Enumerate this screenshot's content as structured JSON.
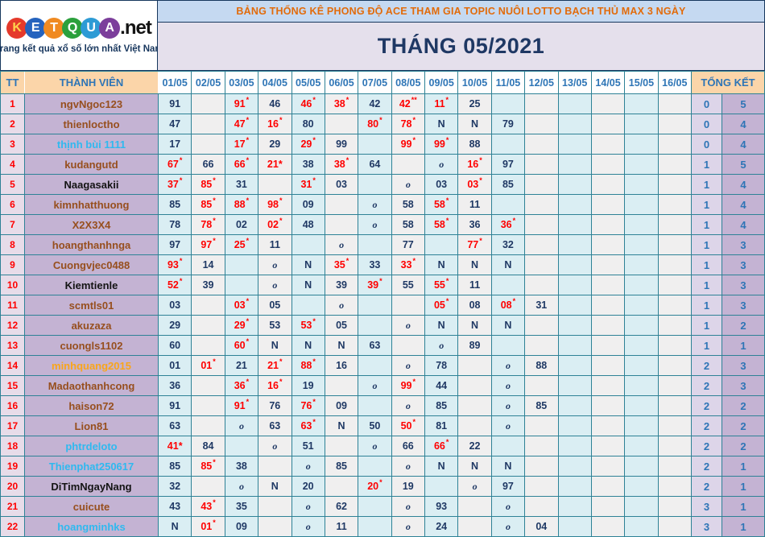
{
  "logo": {
    "letters": [
      {
        "ch": "K",
        "bg": "#E53A2B",
        "fg": "#FFD34D"
      },
      {
        "ch": "E",
        "bg": "#2563BE",
        "fg": "#FFFFFF"
      },
      {
        "ch": "T",
        "bg": "#F08A21",
        "fg": "#FFFFFF"
      },
      {
        "ch": "Q",
        "bg": "#2BA03C",
        "fg": "#FFFFFF"
      },
      {
        "ch": "U",
        "bg": "#2D9BD5",
        "fg": "#FFFFFF"
      },
      {
        "ch": "A",
        "bg": "#7C3E9B",
        "fg": "#FFFFFF"
      }
    ],
    "suffix": ".net",
    "tagline": "Trang kết quả xổ số lớn nhất Việt Nam"
  },
  "banner": {
    "title": "BẢNG THỐNG KÊ PHONG ĐỘ ACE THAM GIA TOPIC NUÔI LOTTO BẠCH THỦ MAX 3 NGÀY",
    "month": "THÁNG 05/2021"
  },
  "colors": {
    "grid_border": "#2E8296",
    "header_text_blue": "#2E75B6",
    "header_peach_bg": "#FBD5A9",
    "banner_bg": "#C5D9F1",
    "banner_text": "#E26B0A",
    "month_bg": "#E5E0EC",
    "value_navy": "#1F3864",
    "value_red": "#FF0000",
    "tt_col_bg": "#E7DCE9",
    "name_col_bg": "#C4B3D3",
    "odd_day_col_bg": "#DAEEF3",
    "even_day_col_bg": "#F0EFEF",
    "summary_col1_bg": "#DDD5E9",
    "summary_col2_bg": "#C4B3D3"
  },
  "table": {
    "tt_header": "TT",
    "member_header": "THÀNH VIÊN",
    "summary_header": "TỔNG KẾT",
    "date_headers": [
      "01/05",
      "02/05",
      "03/05",
      "04/05",
      "05/05",
      "06/05",
      "07/05",
      "08/05",
      "09/05",
      "10/05",
      "11/05",
      "12/05",
      "13/05",
      "14/05",
      "15/05",
      "16/05"
    ],
    "rows": [
      {
        "tt": "1",
        "name": "ngvNgoc123",
        "color": "brown",
        "cells": [
          [
            "91",
            "n"
          ],
          null,
          [
            "91",
            "r"
          ],
          [
            "46",
            "n"
          ],
          [
            "46",
            "r"
          ],
          [
            "38",
            "r"
          ],
          [
            "42",
            "n"
          ],
          [
            "42",
            "rr"
          ],
          [
            "11",
            "r"
          ],
          [
            "25",
            "n"
          ],
          null,
          null,
          null,
          null,
          null,
          null
        ],
        "sum": [
          "0",
          "5"
        ]
      },
      {
        "tt": "2",
        "name": "thienloctho",
        "color": "brown",
        "cells": [
          [
            "47",
            "n"
          ],
          null,
          [
            "47",
            "r"
          ],
          [
            "16",
            "r"
          ],
          [
            "80",
            "n"
          ],
          null,
          [
            "80",
            "r"
          ],
          [
            "78",
            "r"
          ],
          [
            "N",
            "N"
          ],
          [
            "N",
            "N"
          ],
          [
            "79",
            "n"
          ],
          null,
          null,
          null,
          null,
          null
        ],
        "sum": [
          "0",
          "4"
        ]
      },
      {
        "tt": "3",
        "name": "thịnh bùi 1111",
        "color": "cyan",
        "cells": [
          [
            "17",
            "n"
          ],
          null,
          [
            "17",
            "r"
          ],
          [
            "29",
            "n"
          ],
          [
            "29",
            "r"
          ],
          [
            "99",
            "n"
          ],
          null,
          [
            "99",
            "r"
          ],
          [
            "99",
            "r"
          ],
          [
            "88",
            "n"
          ],
          null,
          null,
          null,
          null,
          null,
          null
        ],
        "sum": [
          "0",
          "4"
        ]
      },
      {
        "tt": "4",
        "name": "kudangutd",
        "color": "brown",
        "cells": [
          [
            "67",
            "r"
          ],
          [
            "66",
            "n"
          ],
          [
            "66",
            "r"
          ],
          [
            "21*",
            "ri"
          ],
          [
            "38",
            "n"
          ],
          [
            "38",
            "r"
          ],
          [
            "64",
            "n"
          ],
          null,
          [
            "o",
            "o"
          ],
          [
            "16",
            "r"
          ],
          [
            "97",
            "n"
          ],
          null,
          null,
          null,
          null,
          null
        ],
        "sum": [
          "1",
          "5"
        ]
      },
      {
        "tt": "5",
        "name": "Naagasakii",
        "color": "black",
        "cells": [
          [
            "37",
            "r"
          ],
          [
            "85",
            "r"
          ],
          [
            "31",
            "n"
          ],
          null,
          [
            "31",
            "r"
          ],
          [
            "03",
            "n"
          ],
          null,
          [
            "o",
            "o"
          ],
          [
            "03",
            "n"
          ],
          [
            "03",
            "r"
          ],
          [
            "85",
            "n"
          ],
          null,
          null,
          null,
          null,
          null
        ],
        "sum": [
          "1",
          "4"
        ]
      },
      {
        "tt": "6",
        "name": "kimnhatthuong",
        "color": "brown",
        "cells": [
          [
            "85",
            "n"
          ],
          [
            "85",
            "r"
          ],
          [
            "88",
            "r"
          ],
          [
            "98",
            "r"
          ],
          [
            "09",
            "n"
          ],
          null,
          [
            "o",
            "o"
          ],
          [
            "58",
            "n"
          ],
          [
            "58",
            "r"
          ],
          [
            "11",
            "n"
          ],
          null,
          null,
          null,
          null,
          null,
          null
        ],
        "sum": [
          "1",
          "4"
        ]
      },
      {
        "tt": "7",
        "name": "X2X3X4",
        "color": "brown",
        "cells": [
          [
            "78",
            "n"
          ],
          [
            "78",
            "r"
          ],
          [
            "02",
            "n"
          ],
          [
            "02",
            "r"
          ],
          [
            "48",
            "n"
          ],
          null,
          [
            "o",
            "o"
          ],
          [
            "58",
            "n"
          ],
          [
            "58",
            "r"
          ],
          [
            "36",
            "n"
          ],
          [
            "36",
            "r"
          ],
          null,
          null,
          null,
          null,
          null
        ],
        "sum": [
          "1",
          "4"
        ]
      },
      {
        "tt": "8",
        "name": "hoangthanhnga",
        "color": "brown",
        "cells": [
          [
            "97",
            "n"
          ],
          [
            "97",
            "r"
          ],
          [
            "25",
            "r"
          ],
          [
            "11",
            "n"
          ],
          null,
          [
            "o",
            "o"
          ],
          null,
          [
            "77",
            "n"
          ],
          null,
          [
            "77",
            "r"
          ],
          [
            "32",
            "n"
          ],
          null,
          null,
          null,
          null,
          null
        ],
        "sum": [
          "1",
          "3"
        ]
      },
      {
        "tt": "9",
        "name": "Cuongvjec0488",
        "color": "brown",
        "cells": [
          [
            "93",
            "r"
          ],
          [
            "14",
            "n"
          ],
          null,
          [
            "o",
            "o"
          ],
          [
            "N",
            "N"
          ],
          [
            "35",
            "r"
          ],
          [
            "33",
            "n"
          ],
          [
            "33",
            "r"
          ],
          [
            "N",
            "N"
          ],
          [
            "N",
            "N"
          ],
          [
            "N",
            "N"
          ],
          null,
          null,
          null,
          null,
          null
        ],
        "sum": [
          "1",
          "3"
        ]
      },
      {
        "tt": "10",
        "name": "Kiemtienle",
        "color": "black",
        "cells": [
          [
            "52",
            "r"
          ],
          [
            "39",
            "n"
          ],
          null,
          [
            "o",
            "o"
          ],
          [
            "N",
            "N"
          ],
          [
            "39",
            "n"
          ],
          [
            "39",
            "r"
          ],
          [
            "55",
            "n"
          ],
          [
            "55",
            "r"
          ],
          [
            "11",
            "n"
          ],
          null,
          null,
          null,
          null,
          null,
          null
        ],
        "sum": [
          "1",
          "3"
        ]
      },
      {
        "tt": "11",
        "name": "scmtls01",
        "color": "brown",
        "cells": [
          [
            "03",
            "n"
          ],
          null,
          [
            "03",
            "r"
          ],
          [
            "05",
            "n"
          ],
          null,
          [
            "o",
            "o"
          ],
          null,
          null,
          [
            "05",
            "r"
          ],
          [
            "08",
            "n"
          ],
          [
            "08",
            "r"
          ],
          [
            "31",
            "n"
          ],
          null,
          null,
          null,
          null
        ],
        "sum": [
          "1",
          "3"
        ]
      },
      {
        "tt": "12",
        "name": "akuzaza",
        "color": "brown",
        "cells": [
          [
            "29",
            "n"
          ],
          null,
          [
            "29",
            "r"
          ],
          [
            "53",
            "n"
          ],
          [
            "53",
            "r"
          ],
          [
            "05",
            "n"
          ],
          null,
          [
            "o",
            "o"
          ],
          [
            "N",
            "N"
          ],
          [
            "N",
            "N"
          ],
          [
            "N",
            "N"
          ],
          null,
          null,
          null,
          null,
          null
        ],
        "sum": [
          "1",
          "2"
        ]
      },
      {
        "tt": "13",
        "name": "cuongls1102",
        "color": "brown",
        "cells": [
          [
            "60",
            "n"
          ],
          null,
          [
            "60",
            "r"
          ],
          [
            "N",
            "N"
          ],
          [
            "N",
            "N"
          ],
          [
            "N",
            "N"
          ],
          [
            "63",
            "n"
          ],
          null,
          [
            "o",
            "o"
          ],
          [
            "89",
            "n"
          ],
          null,
          null,
          null,
          null,
          null,
          null
        ],
        "sum": [
          "1",
          "1"
        ]
      },
      {
        "tt": "14",
        "name": "minhquang2015",
        "color": "orange",
        "cells": [
          [
            "01",
            "n"
          ],
          [
            "01",
            "r"
          ],
          [
            "21",
            "n"
          ],
          [
            "21",
            "r"
          ],
          [
            "88",
            "r"
          ],
          [
            "16",
            "n"
          ],
          null,
          [
            "o",
            "o"
          ],
          [
            "78",
            "n"
          ],
          null,
          [
            "o",
            "o"
          ],
          [
            "88",
            "n"
          ],
          null,
          null,
          null,
          null
        ],
        "sum": [
          "2",
          "3"
        ]
      },
      {
        "tt": "15",
        "name": "Madaothanhcong",
        "color": "brown",
        "cells": [
          [
            "36",
            "n"
          ],
          null,
          [
            "36",
            "r"
          ],
          [
            "16",
            "r"
          ],
          [
            "19",
            "n"
          ],
          null,
          [
            "o",
            "o"
          ],
          [
            "99",
            "r"
          ],
          [
            "44",
            "n"
          ],
          null,
          [
            "o",
            "o"
          ],
          null,
          null,
          null,
          null,
          null
        ],
        "sum": [
          "2",
          "3"
        ]
      },
      {
        "tt": "16",
        "name": "haison72",
        "color": "brown",
        "cells": [
          [
            "91",
            "n"
          ],
          null,
          [
            "91",
            "r"
          ],
          [
            "76",
            "n"
          ],
          [
            "76",
            "r"
          ],
          [
            "09",
            "n"
          ],
          null,
          [
            "o",
            "o"
          ],
          [
            "85",
            "n"
          ],
          null,
          [
            "o",
            "o"
          ],
          [
            "85",
            "n"
          ],
          null,
          null,
          null,
          null
        ],
        "sum": [
          "2",
          "2"
        ]
      },
      {
        "tt": "17",
        "name": "Lion81",
        "color": "brown",
        "cells": [
          [
            "63",
            "n"
          ],
          null,
          [
            "o",
            "o"
          ],
          [
            "63",
            "n"
          ],
          [
            "63",
            "r"
          ],
          [
            "N",
            "N"
          ],
          [
            "50",
            "n"
          ],
          [
            "50",
            "r"
          ],
          [
            "81",
            "n"
          ],
          null,
          [
            "o",
            "o"
          ],
          null,
          null,
          null,
          null,
          null
        ],
        "sum": [
          "2",
          "2"
        ]
      },
      {
        "tt": "18",
        "name": "phtrdeloto",
        "color": "cyan",
        "cells": [
          [
            "41*",
            "ri"
          ],
          [
            "84",
            "n"
          ],
          null,
          [
            "o",
            "o"
          ],
          [
            "51",
            "n"
          ],
          null,
          [
            "o",
            "o"
          ],
          [
            "66",
            "n"
          ],
          [
            "66",
            "r"
          ],
          [
            "22",
            "n"
          ],
          null,
          null,
          null,
          null,
          null,
          null
        ],
        "sum": [
          "2",
          "2"
        ]
      },
      {
        "tt": "19",
        "name": "Thienphat250617",
        "color": "cyan",
        "cells": [
          [
            "85",
            "n"
          ],
          [
            "85",
            "r"
          ],
          [
            "38",
            "n"
          ],
          null,
          [
            "o",
            "o"
          ],
          [
            "85",
            "n"
          ],
          null,
          [
            "o",
            "o"
          ],
          [
            "N",
            "N"
          ],
          [
            "N",
            "N"
          ],
          [
            "N",
            "N"
          ],
          null,
          null,
          null,
          null,
          null
        ],
        "sum": [
          "2",
          "1"
        ]
      },
      {
        "tt": "20",
        "name": "DiTimNgayNang",
        "color": "black",
        "cells": [
          [
            "32",
            "n"
          ],
          null,
          [
            "o",
            "o"
          ],
          [
            "N",
            "N"
          ],
          [
            "20",
            "n"
          ],
          null,
          [
            "20",
            "r"
          ],
          [
            "19",
            "n"
          ],
          null,
          [
            "o",
            "o"
          ],
          [
            "97",
            "n"
          ],
          null,
          null,
          null,
          null,
          null
        ],
        "sum": [
          "2",
          "1"
        ]
      },
      {
        "tt": "21",
        "name": "cuicute",
        "color": "brown",
        "cells": [
          [
            "43",
            "n"
          ],
          [
            "43",
            "r"
          ],
          [
            "35",
            "n"
          ],
          null,
          [
            "o",
            "o"
          ],
          [
            "62",
            "n"
          ],
          null,
          [
            "o",
            "o"
          ],
          [
            "93",
            "n"
          ],
          null,
          [
            "o",
            "o"
          ],
          null,
          null,
          null,
          null,
          null
        ],
        "sum": [
          "3",
          "1"
        ]
      },
      {
        "tt": "22",
        "name": "hoangminhks",
        "color": "cyan",
        "cells": [
          [
            "N",
            "N"
          ],
          [
            "01",
            "r"
          ],
          [
            "09",
            "n"
          ],
          null,
          [
            "o",
            "o"
          ],
          [
            "11",
            "n"
          ],
          null,
          [
            "o",
            "o"
          ],
          [
            "24",
            "n"
          ],
          null,
          [
            "o",
            "o"
          ],
          [
            "04",
            "n"
          ],
          null,
          null,
          null,
          null
        ],
        "sum": [
          "3",
          "1"
        ]
      }
    ]
  }
}
